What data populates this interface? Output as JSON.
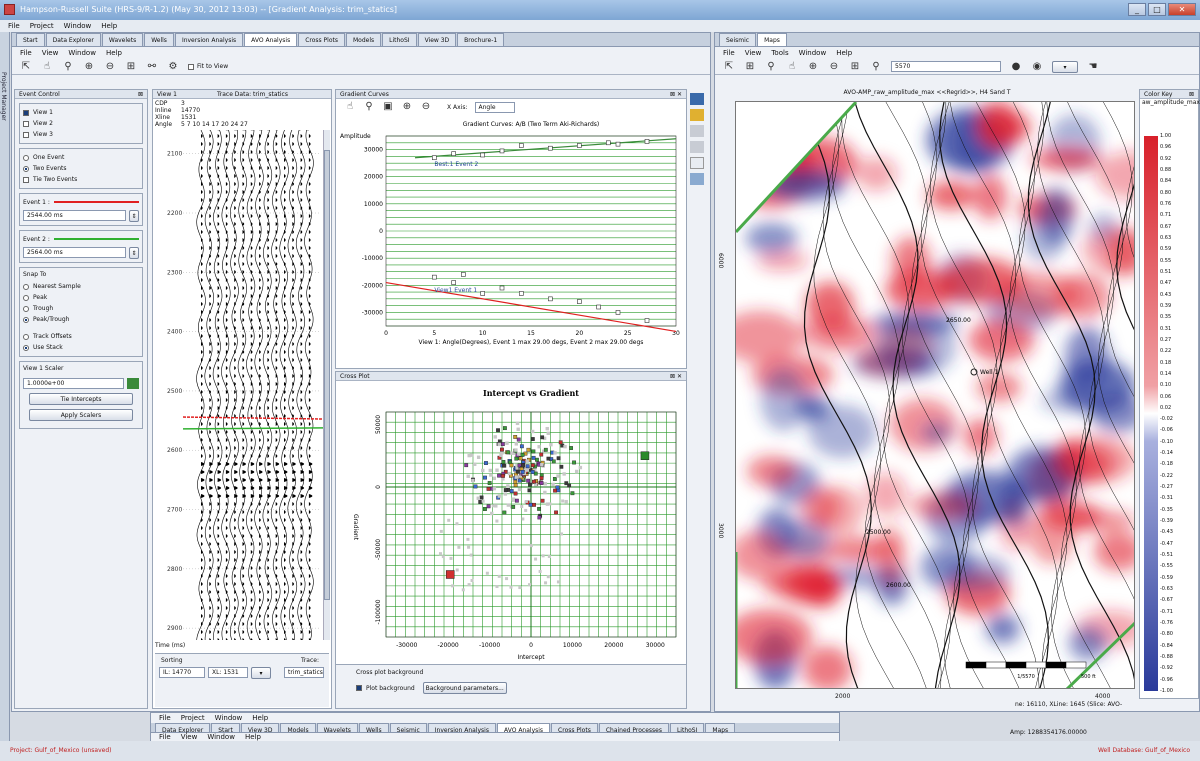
{
  "window": {
    "title": "Hampson-Russell Suite (HRS-9/R-1.2) (May 30, 2012 13:03) -- [Gradient Analysis: trim_statics]"
  },
  "main_menu": [
    "File",
    "Project",
    "Window",
    "Help"
  ],
  "side_label": "Project Manager",
  "left_tabs": [
    "Start",
    "Data Explorer",
    "Wavelets",
    "Wells",
    "Inversion Analysis",
    "AVO Analysis",
    "Cross Plots",
    "Models",
    "LithoSI",
    "View 3D",
    "Brochure-1"
  ],
  "left_active_tab": "AVO Analysis",
  "sub_menu": [
    "File",
    "View",
    "Window",
    "Help"
  ],
  "fit_to_view": "Fit to View",
  "event_control": {
    "title": "Event Control",
    "views": [
      {
        "label": "View 1",
        "checked": true
      },
      {
        "label": "View 2",
        "checked": false
      },
      {
        "label": "View 3",
        "checked": false
      }
    ],
    "events": [
      {
        "label": "One Event",
        "selected": false
      },
      {
        "label": "Two Events",
        "selected": true
      }
    ],
    "tie_two_events": "Tie Two Events",
    "event1_label": "Event 1 :",
    "event1_value": "2544.00 ms",
    "event1_color": "#e02020",
    "event2_label": "Event 2 :",
    "event2_value": "2564.00 ms",
    "event2_color": "#30b030",
    "snap_to_title": "Snap To",
    "snap_options": [
      {
        "label": "Nearest Sample",
        "selected": false
      },
      {
        "label": "Peak",
        "selected": false
      },
      {
        "label": "Trough",
        "selected": false
      },
      {
        "label": "Peak/Trough",
        "selected": true
      }
    ],
    "track_offsets": "Track Offsets",
    "use_stack": "Use Stack",
    "scaler_title": "View 1 Scaler",
    "scaler_value": "1.0000e+00",
    "tie_intercepts": "Tie Intercepts",
    "apply_scalers": "Apply Scalers"
  },
  "seismic_view": {
    "title": "View 1",
    "trace_data": "Trace Data: trim_statics",
    "header_labels": [
      "CDP",
      "Inline",
      "Xline",
      "Angle"
    ],
    "header_values": [
      "3",
      "14770",
      "1531",
      "5  7   10  14  17  20  24  27"
    ],
    "time_ticks": [
      "2100",
      "2200",
      "2300",
      "2400",
      "2500",
      "2600",
      "2700",
      "2800",
      "2900"
    ],
    "time_label": "Time (ms)",
    "sorting_label": "Sorting",
    "trace_label": "Trace:",
    "trace_value": "trim_statics",
    "il_value": "IL: 14770",
    "xl_value": "XL: 1531"
  },
  "gradient_curves": {
    "panel_title": "Gradient Curves",
    "x_axis_label": "X Axis:",
    "x_axis_value": "Angle",
    "chart_title": "Gradient Curves: A/B   (Two Term Aki-Richards)",
    "ylabel": "Amplitude",
    "yticks": [
      "30000",
      "20000",
      "10000",
      "0",
      "-10000",
      "-20000",
      "-30000"
    ],
    "xticks": [
      "0",
      "5",
      "10",
      "15",
      "20",
      "25",
      "30"
    ],
    "event_label_2": "Best:1 Event 2",
    "event_label_1": "View1 Event 1",
    "xlabel": "View 1: Angle(Degrees), Event 1 max 29.00 degs, Event 2 max 29.00 degs"
  },
  "cross_plot": {
    "panel_title": "Cross Plot",
    "chart_title": "Intercept   vs   Gradient",
    "xlabel": "Intercept",
    "ylabel": "Gradient",
    "xticks": [
      "-30000",
      "-20000",
      "-10000",
      "0",
      "10000",
      "20000",
      "30000"
    ],
    "yticks": [
      "50000",
      "0",
      "-50000",
      "-100000"
    ],
    "background_title": "Cross plot background",
    "plot_background": "Plot background",
    "background_params": "Background parameters..."
  },
  "right_window": {
    "tabs": [
      "Seismic",
      "Maps"
    ],
    "active_tab": "Maps",
    "menu": [
      "File",
      "View",
      "Tools",
      "Window",
      "Help"
    ],
    "combo_value": "5570",
    "map_title": "AVO-AMP_raw_amplitude_max <<Regrid>>, H4 Sand T",
    "map_y_ticks": [
      "6000",
      "3000"
    ],
    "map_x_ticks": [
      "2000",
      "4000"
    ],
    "well_label": "Well 1",
    "contour_labels": [
      "2500.00",
      "2600.00",
      "2650.00"
    ],
    "scale_text": "1/5570",
    "scale_unit": "500 ft",
    "status_text": "ne: 16110, XLine: 1645  (Slice: AVO-",
    "amp_text": "Amp: 1288354176.00000"
  },
  "color_key": {
    "title": "Color Key",
    "subtitle": "aw_amplitude_max",
    "values": [
      "1.00",
      "0.96",
      "0.92",
      "0.88",
      "0.84",
      "0.80",
      "0.76",
      "0.71",
      "0.67",
      "0.63",
      "0.59",
      "0.55",
      "0.51",
      "0.47",
      "0.43",
      "0.39",
      "0.35",
      "0.31",
      "0.27",
      "0.22",
      "0.18",
      "0.14",
      "0.10",
      "0.06",
      "0.02",
      "-0.02",
      "-0.06",
      "-0.10",
      "-0.14",
      "-0.18",
      "-0.22",
      "-0.27",
      "-0.31",
      "-0.35",
      "-0.39",
      "-0.43",
      "-0.47",
      "-0.51",
      "-0.55",
      "-0.59",
      "-0.63",
      "-0.67",
      "-0.71",
      "-0.76",
      "-0.80",
      "-0.84",
      "-0.88",
      "-0.92",
      "-0.96",
      "-1.00"
    ]
  },
  "bottom_window": {
    "menu": [
      "File",
      "Project",
      "Window",
      "Help"
    ],
    "tabs": [
      "Data Explorer",
      "Start",
      "View 3D",
      "Models",
      "Wavelets",
      "Wells",
      "Seismic",
      "Inversion Analysis",
      "AVO Analysis",
      "Cross Plots",
      "Chained Processes",
      "LithoSI",
      "Maps"
    ],
    "active_tab": "AVO Analysis",
    "sub_menu": [
      "File",
      "View",
      "Window",
      "Help"
    ]
  },
  "status": {
    "project": "Project: Gulf_of_Mexico (unsaved)",
    "well_db": "Well Database: Gulf_of_Mexico"
  }
}
